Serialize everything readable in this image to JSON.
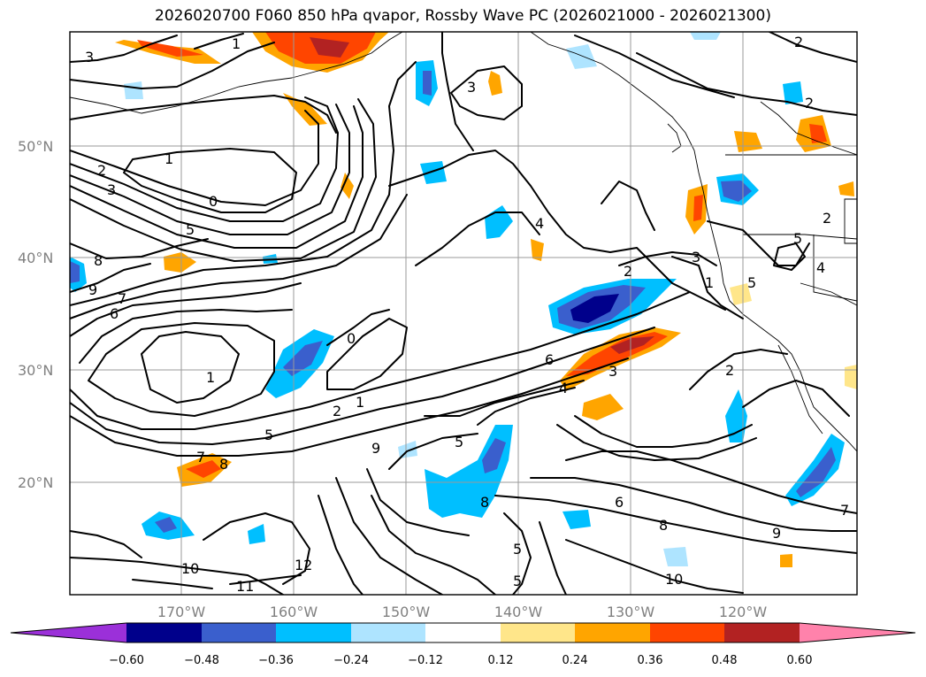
{
  "title": "2026020700 F060 850 hPa qvapor, Rossby Wave PC (2026021000 - 2026021300)",
  "lat_labels": [
    "50°N",
    "40°N",
    "30°N",
    "20°N"
  ],
  "lon_labels": [
    "170°W",
    "160°W",
    "150°W",
    "140°W",
    "130°W",
    "120°W"
  ],
  "contour_labels": [
    "1",
    "3",
    "3",
    "2",
    "2",
    "1",
    "2",
    "3",
    "0",
    "5",
    "8",
    "9",
    "7",
    "6",
    "4",
    "2",
    "3",
    "2",
    "5",
    "4",
    "5",
    "1",
    "0",
    "1",
    "2",
    "1",
    "5",
    "9",
    "5",
    "8",
    "5",
    "5",
    "6",
    "8",
    "10",
    "10",
    "11",
    "12",
    "7",
    "8",
    "6",
    "3",
    "4",
    "2",
    "7",
    "9"
  ],
  "colorbar": {
    "ticks": [
      "−0.60",
      "−0.48",
      "−0.36",
      "−0.24",
      "−0.12",
      "0.12",
      "0.24",
      "0.36",
      "0.48",
      "0.60"
    ],
    "colors": [
      "#9b30d9",
      "#00008b",
      "#3a5fcd",
      "#00bfff",
      "#aee4ff",
      "#ffffff",
      "#ffe68a",
      "#ffa500",
      "#ff4500",
      "#b22222",
      "#ff82ab"
    ]
  }
}
